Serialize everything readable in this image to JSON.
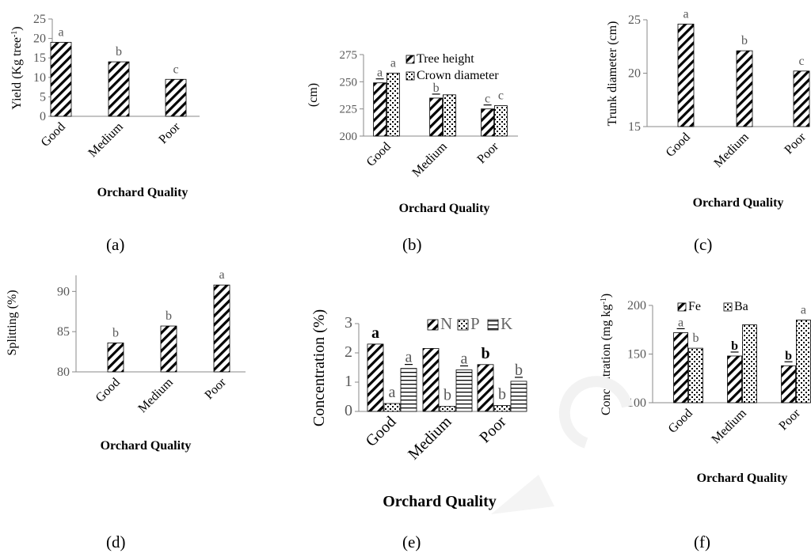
{
  "figure": {
    "panels": [
      {
        "id": "a",
        "caption": "(a)",
        "type": "bar",
        "ylabel": "Yield  (Kg tree-1)",
        "ylabel_main": "Yield  (Kg tree",
        "ylabel_sup": "-1",
        "ylabel_end": ")",
        "xlabel": "Orchard  Quality",
        "xlabel_bold": true,
        "ylim": [
          0,
          25
        ],
        "yticks": [
          0,
          5,
          10,
          15,
          20,
          25
        ],
        "ytick_labels": [
          "0",
          "5",
          "10",
          "15",
          "20",
          "25"
        ],
        "categories": [
          "Good",
          "Medium",
          "Poor"
        ],
        "series": [
          {
            "pattern": "diag",
            "values": [
              19,
              14,
              9.5
            ],
            "letters": [
              "a",
              "b",
              "c"
            ]
          }
        ]
      },
      {
        "id": "b",
        "caption": "(b)",
        "type": "bar",
        "ylabel": "(cm)",
        "xlabel": "Orchard  Quality",
        "xlabel_bold": true,
        "ylim": [
          200,
          275
        ],
        "yticks": [
          200,
          225,
          250,
          275
        ],
        "ytick_labels": [
          "200",
          "225",
          "250",
          "275"
        ],
        "categories": [
          "Good",
          "Medium",
          "Poor"
        ],
        "series": [
          {
            "name": "Tree height",
            "pattern": "diag",
            "values": [
              249,
              235,
              225
            ],
            "letters": [
              "a",
              "b",
              "c"
            ],
            "underline": [
              true,
              true,
              true
            ]
          },
          {
            "name": "Crown diameter",
            "pattern": "dots",
            "values": [
              258,
              238,
              228
            ],
            "letters": [
              "a",
              "",
              "c"
            ],
            "underline": [
              false,
              false,
              false
            ]
          }
        ]
      },
      {
        "id": "c",
        "caption": "(c)",
        "type": "bar",
        "ylabel": "Trunk diameter (cm)",
        "xlabel": "Orchard  Quality",
        "xlabel_bold": true,
        "ylim": [
          15,
          25
        ],
        "yticks": [
          15,
          20,
          25
        ],
        "ytick_labels": [
          "15",
          "20",
          "25"
        ],
        "categories": [
          "Good",
          "Medium",
          "Poor"
        ],
        "series": [
          {
            "pattern": "diag",
            "values": [
              24.6,
              22.1,
              20.2
            ],
            "letters": [
              "a",
              "b",
              "c"
            ]
          }
        ]
      },
      {
        "id": "d",
        "caption": "(d)",
        "type": "bar",
        "ylabel": "Splitting (%)",
        "xlabel": "Orchard  Quality",
        "xlabel_bold": true,
        "ylim": [
          80,
          92
        ],
        "yticks": [
          80,
          85,
          90
        ],
        "ytick_labels": [
          "80",
          "85",
          "90"
        ],
        "categories": [
          "Good",
          "Medium",
          "Poor"
        ],
        "series": [
          {
            "pattern": "diag",
            "values": [
              83.6,
              85.7,
              90.8
            ],
            "letters": [
              "b",
              "b",
              "a"
            ]
          }
        ]
      },
      {
        "id": "e",
        "caption": "(e)",
        "type": "bar",
        "ylabel": "Concentration (%)",
        "xlabel": "Orchard  Quality",
        "xlabel_bold": true,
        "ylim": [
          0,
          3
        ],
        "yticks": [
          0,
          1,
          2,
          3
        ],
        "ytick_labels": [
          "0",
          "1",
          "2",
          "3"
        ],
        "categories": [
          "Good",
          "Medium",
          "Poor"
        ],
        "series": [
          {
            "name": "N",
            "pattern": "diag",
            "values": [
              2.3,
              2.15,
              1.6
            ],
            "letters": [
              "a",
              "",
              "b"
            ],
            "bold": [
              true,
              false,
              true
            ]
          },
          {
            "name": "P",
            "pattern": "dots",
            "values": [
              0.27,
              0.17,
              0.2
            ],
            "letters": [
              "a",
              "b",
              "b"
            ]
          },
          {
            "name": "K",
            "pattern": "hlines",
            "values": [
              1.47,
              1.42,
              1.03
            ],
            "letters": [
              "a",
              "a",
              "b"
            ],
            "underline": [
              true,
              true,
              true
            ]
          }
        ]
      },
      {
        "id": "f",
        "caption": "(f)",
        "type": "bar",
        "ylabel": "Concentration (mg kg-1)",
        "ylabel_main": "Concentration (mg kg",
        "ylabel_sup": "-1",
        "ylabel_end": ")",
        "xlabel": "Orchard  Quality",
        "xlabel_bold": true,
        "ylim": [
          100,
          200
        ],
        "yticks": [
          100,
          150,
          200
        ],
        "ytick_labels": [
          "100",
          "150",
          "200"
        ],
        "categories": [
          "Good",
          "Medium",
          "Poor"
        ],
        "series": [
          {
            "name": "Fe",
            "pattern": "diag",
            "values": [
              172,
              148,
              138
            ],
            "letters": [
              "a",
              "b",
              "b"
            ],
            "underline": [
              true,
              true,
              true
            ],
            "bold": [
              false,
              true,
              true
            ]
          },
          {
            "name": "Ba",
            "pattern": "dots",
            "values": [
              156,
              180,
              185
            ],
            "letters": [
              "b",
              "",
              "a"
            ]
          }
        ]
      }
    ]
  },
  "chart_data": [
    {
      "type": "bar",
      "title": "",
      "ylabel": "Yield  (Kg tree-1)",
      "xlabel": "Orchard  Quality",
      "ylim": [
        0,
        25
      ],
      "categories": [
        "Good",
        "Medium",
        "Poor"
      ],
      "values": [
        19,
        14,
        9.5
      ]
    },
    {
      "type": "bar",
      "title": "",
      "ylabel": "(cm)",
      "xlabel": "Orchard  Quality",
      "ylim": [
        200,
        275
      ],
      "categories": [
        "Good",
        "Medium",
        "Poor"
      ],
      "series": [
        {
          "name": "Tree height",
          "values": [
            249,
            235,
            225
          ]
        },
        {
          "name": "Crown diameter",
          "values": [
            258,
            238,
            228
          ]
        }
      ]
    },
    {
      "type": "bar",
      "title": "",
      "ylabel": "Trunk diameter (cm)",
      "xlabel": "Orchard  Quality",
      "ylim": [
        15,
        25
      ],
      "categories": [
        "Good",
        "Medium",
        "Poor"
      ],
      "values": [
        24.6,
        22.1,
        20.2
      ]
    },
    {
      "type": "bar",
      "title": "",
      "ylabel": "Splitting (%)",
      "xlabel": "Orchard  Quality",
      "ylim": [
        80,
        92
      ],
      "categories": [
        "Good",
        "Medium",
        "Poor"
      ],
      "values": [
        83.6,
        85.7,
        90.8
      ]
    },
    {
      "type": "bar",
      "title": "",
      "ylabel": "Concentration (%)",
      "xlabel": "Orchard  Quality",
      "ylim": [
        0,
        3
      ],
      "categories": [
        "Good",
        "Medium",
        "Poor"
      ],
      "series": [
        {
          "name": "N",
          "values": [
            2.3,
            2.15,
            1.6
          ]
        },
        {
          "name": "P",
          "values": [
            0.27,
            0.17,
            0.2
          ]
        },
        {
          "name": "K",
          "values": [
            1.47,
            1.42,
            1.03
          ]
        }
      ]
    },
    {
      "type": "bar",
      "title": "",
      "ylabel": "Concentration (mg kg-1)",
      "xlabel": "Orchard  Quality",
      "ylim": [
        100,
        200
      ],
      "categories": [
        "Good",
        "Medium",
        "Poor"
      ],
      "series": [
        {
          "name": "Fe",
          "values": [
            172,
            148,
            138
          ]
        },
        {
          "name": "Ba",
          "values": [
            156,
            180,
            185
          ]
        }
      ]
    }
  ]
}
